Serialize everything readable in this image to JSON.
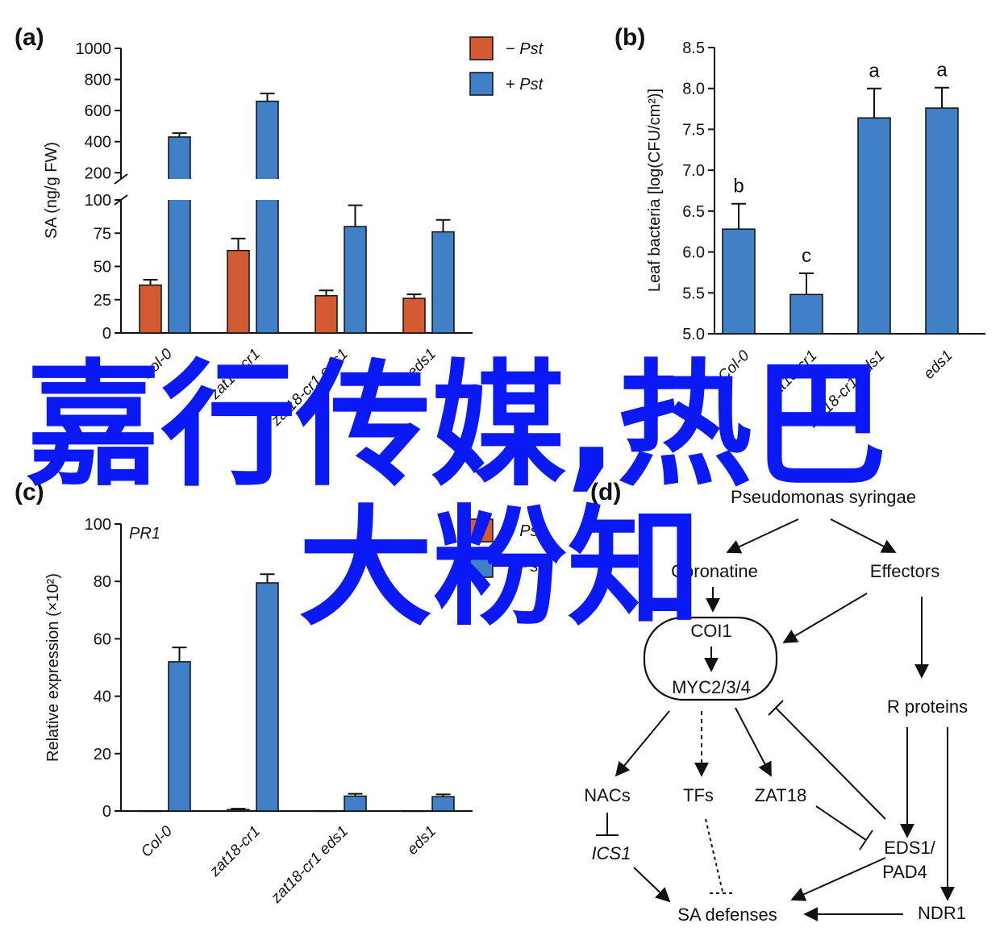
{
  "panels": {
    "a": "(a)",
    "b": "(b)",
    "c": "(c)",
    "d": "(d)"
  },
  "colors": {
    "minus": "#d45a33",
    "plus": "#3f80c7"
  },
  "chart_data": [
    {
      "id": "a",
      "type": "bar",
      "ylabel": "SA (ng/g FW)",
      "categories": [
        "Col-0",
        "zat18-cr1",
        "zat18-cr1 eds1",
        "eds1"
      ],
      "yticks_lower": [
        "0",
        "25",
        "50",
        "75",
        "100"
      ],
      "yticks_upper": [
        "200",
        "400",
        "600",
        "800",
        "1000"
      ],
      "ylim_lower": [
        0,
        100
      ],
      "ylim_upper": [
        160,
        1000
      ],
      "legend": [
        {
          "sign": "−",
          "name": "Pst"
        },
        {
          "sign": "+",
          "name": "Pst"
        }
      ],
      "series": [
        {
          "name": "−Pst",
          "values": [
            36,
            62,
            28,
            26
          ],
          "errors": [
            4,
            9,
            4,
            3
          ]
        },
        {
          "name": "+Pst",
          "values": [
            430,
            660,
            80,
            76
          ],
          "errors": [
            25,
            50,
            16,
            9
          ]
        }
      ]
    },
    {
      "id": "b",
      "type": "bar",
      "ylabel": "Leaf bacteria [log(CFU/cm²)]",
      "categories": [
        "Col-0",
        "zat18-cr1",
        "zat18-cr1 eds1",
        "eds1"
      ],
      "yticks": [
        "5.0",
        "5.5",
        "6.0",
        "6.5",
        "7.0",
        "7.5",
        "8.0",
        "8.5"
      ],
      "ylim": [
        5.0,
        8.5
      ],
      "values": [
        6.28,
        5.48,
        7.64,
        7.76
      ],
      "errors": [
        0.31,
        0.26,
        0.36,
        0.25
      ],
      "letters": [
        "b",
        "c",
        "a",
        "a"
      ]
    },
    {
      "id": "c",
      "type": "bar",
      "title": "PR1",
      "ylabel": "Relative expression (×10²)",
      "categories": [
        "Col-0",
        "zat18-cr1",
        "zat18-cr1 eds1",
        "eds1"
      ],
      "yticks": [
        "0",
        "20",
        "40",
        "60",
        "80",
        "100"
      ],
      "ylim": [
        0,
        100
      ],
      "legend": [
        {
          "sign": "−",
          "name": "Pst"
        },
        {
          "sign": "+",
          "name": "Pst"
        }
      ],
      "series": [
        {
          "name": "−Pst",
          "values": [
            0,
            0.5,
            0,
            0
          ],
          "errors": [
            0,
            0.3,
            0,
            0
          ]
        },
        {
          "name": "+Pst",
          "values": [
            52,
            79.5,
            5.2,
            5
          ],
          "errors": [
            5,
            3,
            0.8,
            0.8
          ]
        }
      ]
    }
  ],
  "diagram": {
    "pathogen": "Pseudomonas syringae",
    "coronatine": "Coronatine",
    "effectors": "Effectors",
    "coi1": "COI1",
    "myc": "MYC2/3/4",
    "r_proteins": "R proteins",
    "nacs": "NACs",
    "tfs": "TFs",
    "zat18": "ZAT18",
    "ics1": "ICS1",
    "eds1_line1": "EDS1/",
    "eds1_line2": "PAD4",
    "sa_defenses": "SA defenses",
    "ndr1": "NDR1"
  },
  "watermark": {
    "line1": "嘉行传媒,热巴",
    "line2": "大粉知"
  }
}
